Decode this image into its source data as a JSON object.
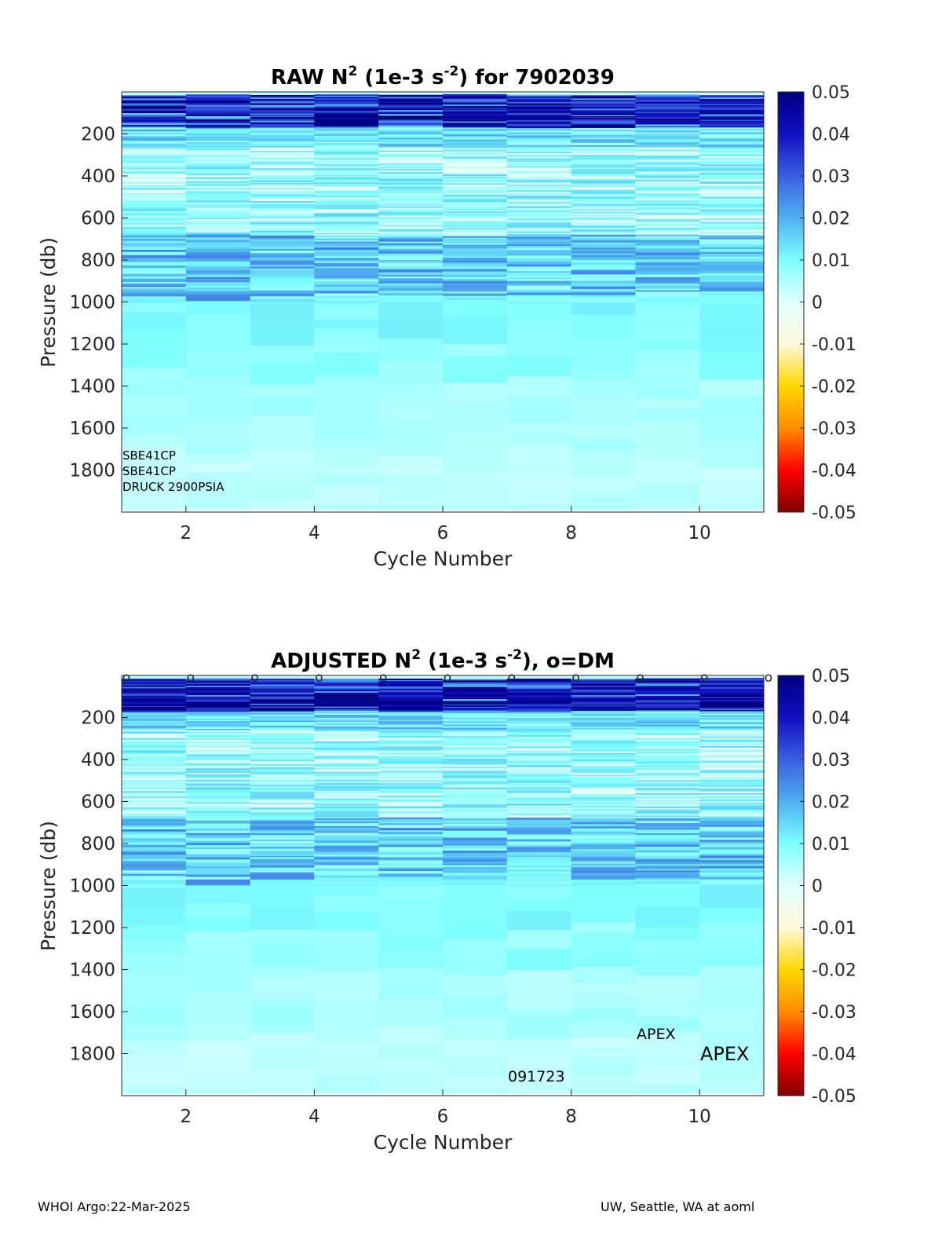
{
  "chart_data": [
    {
      "type": "heatmap",
      "title_prefix": "RAW N",
      "title_sup1": "2",
      "title_mid": " (1e-3 s",
      "title_sup2": "-2",
      "title_suffix": ") for 7902039",
      "xlabel": "Cycle Number",
      "ylabel": "Pressure (db)",
      "xlim": [
        1,
        11
      ],
      "ylim": [
        0,
        2000
      ],
      "y_reversed": true,
      "x_ticks": [
        "2",
        "4",
        "6",
        "8",
        "10"
      ],
      "y_ticks": [
        "200",
        "400",
        "600",
        "800",
        "1000",
        "1200",
        "1400",
        "1600",
        "1800"
      ],
      "colorbar": {
        "range": [
          -0.05,
          0.05
        ],
        "ticks": [
          "0.05",
          "0.04",
          "0.03",
          "0.02",
          "0.01",
          "0",
          "-0.01",
          "-0.02",
          "-0.03",
          "-0.04",
          "-0.05"
        ],
        "colormap": [
          "#800000",
          "#ff0000",
          "#ff8c00",
          "#ffd700",
          "#fff8dc",
          "#e0ffff",
          "#7fffff",
          "#4fb0ef",
          "#3a5fe0",
          "#1010c0",
          "#000080"
        ]
      },
      "cycles": [
        1,
        2,
        3,
        4,
        5,
        6,
        7,
        8,
        9,
        10,
        11
      ],
      "annotations": [
        "SBE41CP",
        "SBE41CP",
        "DRUCK 2900PSIA"
      ]
    },
    {
      "type": "heatmap",
      "title_prefix": "ADJUSTED N",
      "title_sup1": "2",
      "title_mid": " (1e-3 s",
      "title_sup2": "-2",
      "title_suffix": "), o=DM",
      "xlabel": "Cycle Number",
      "ylabel": "Pressure (db)",
      "xlim": [
        1,
        11
      ],
      "ylim": [
        0,
        2000
      ],
      "y_reversed": true,
      "x_ticks": [
        "2",
        "4",
        "6",
        "8",
        "10"
      ],
      "y_ticks": [
        "200",
        "400",
        "600",
        "800",
        "1000",
        "1200",
        "1400",
        "1600",
        "1800"
      ],
      "colorbar": {
        "range": [
          -0.05,
          0.05
        ],
        "ticks": [
          "0.05",
          "0.04",
          "0.03",
          "0.02",
          "0.01",
          "0",
          "-0.01",
          "-0.02",
          "-0.03",
          "-0.04",
          "-0.05"
        ],
        "colormap": [
          "#800000",
          "#ff0000",
          "#ff8c00",
          "#ffd700",
          "#fff8dc",
          "#e0ffff",
          "#7fffff",
          "#4fb0ef",
          "#3a5fe0",
          "#1010c0",
          "#000080"
        ]
      },
      "cycles": [
        1,
        2,
        3,
        4,
        5,
        6,
        7,
        8,
        9,
        10,
        11
      ],
      "dm_marker": "o",
      "dm_cycles": [
        1,
        2,
        3,
        4,
        5,
        6,
        7,
        8,
        9,
        10,
        11
      ],
      "annotations": [
        "APEX",
        "APEX",
        "091723"
      ]
    }
  ],
  "footer": {
    "left": "WHOI Argo:22-Mar-2025",
    "right": "UW, Seattle, WA at aoml"
  }
}
